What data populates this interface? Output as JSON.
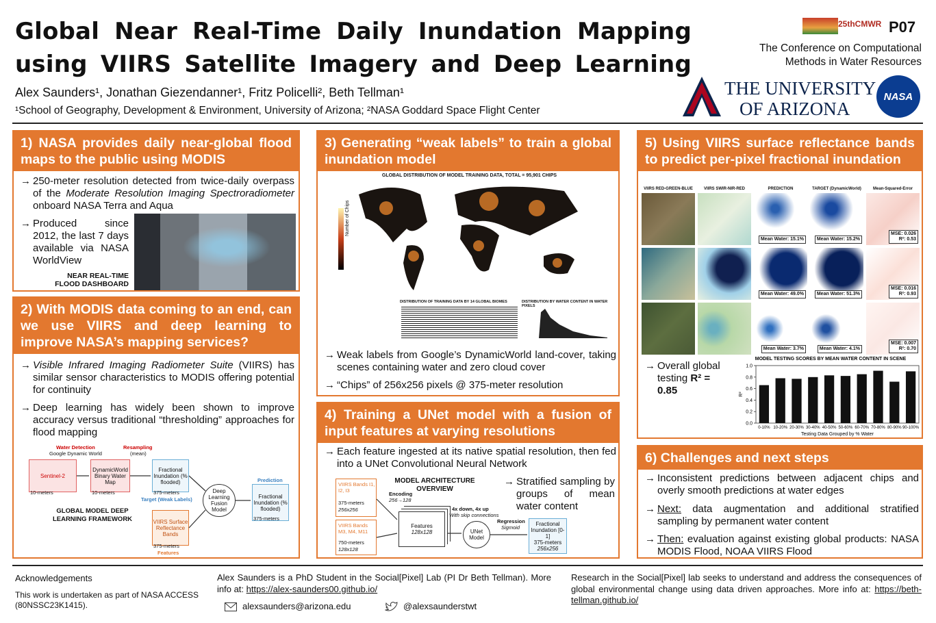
{
  "header": {
    "title_line1": "Global Near Real-Time Daily Inundation Mapping",
    "title_line2": "using VIIRS Satellite Imagery and Deep Learning",
    "authors": "Alex Saunders¹, Jonathan Giezendanner¹, Fritz Policelli², Beth Tellman¹",
    "affiliations": "¹School of Geography, Development & Environment, University of Arizona; ²NASA Goddard Space Flight Center",
    "conference_logo": "25thCMWR",
    "poster_id": "P07",
    "conference": "The Conference on Computational Methods in Water Resources",
    "university_line1": "THE UNIVERSITY",
    "university_line2": "OF ARIZONA",
    "nasa": "NASA"
  },
  "sections": [
    {
      "heading": "1) NASA provides daily near-global flood maps to the public using MODIS",
      "bullets": [
        [
          "250-meter resolution detected from twice-daily overpass of the ",
          "Moderate Resolution Imaging Spectroradiometer",
          " onboard NASA Terra and Aqua"
        ],
        [
          "Produced since 2012, the last 7 days available via NASA WorldView"
        ]
      ],
      "figure_caption": "NEAR REAL-TIME FLOOD DASHBOARD"
    },
    {
      "heading": "2) With MODIS data coming to an end, can we use VIIRS and deep learning to improve NASA’s mapping services?",
      "bullets": [
        [
          "Visible Infrared Imaging Radiometer Suite",
          " (VIIRS) has similar sensor characteristics to MODIS offering potential for continuity"
        ],
        [
          "Deep learning has widely been shown to improve accuracy versus traditional “thresholding” approaches for flood mapping"
        ]
      ],
      "diagram": {
        "water_detection": "Water Detection",
        "google_dynamic_world": "Google Dynamic World",
        "resampling": "Resampling",
        "resampling_method": "(mean)",
        "sentinel": "Sentinel-2",
        "sentinel_res": "10-meters",
        "dw": "DynamicWorld Binary Water Map",
        "dw_res": "10-meters",
        "target_box": "Fractional Inundation (% flooded)",
        "target_res": "375-meters",
        "target_label": "Target (Weak Labels)",
        "model": "Deep Learning Fusion Model",
        "prediction_label": "Prediction",
        "prediction_box": "Fractional Inundation (% flooded)",
        "prediction_res": "375-meters",
        "viirs": "VIIRS Surface Reflectance Bands",
        "viirs_res": "375-meters",
        "features_label": "Features",
        "caption": "GLOBAL MODEL DEEP LEARNING FRAMEWORK"
      }
    },
    {
      "heading": "3) Generating “weak labels” to train a global inundation model",
      "figure": {
        "map_title": "GLOBAL DISTRIBUTION OF MODEL TRAINING DATA, TOTAL = 95,901 CHIPS",
        "colorbar_label": "Number of Chips",
        "biomes_title": "DISTRIBUTION OF TRAINING DATA BY 14 GLOBAL BIOMES",
        "water_title": "DISTRIBUTION BY WATER CONTENT IN WATER PIXELS"
      },
      "bullets": [
        [
          "Weak labels from Google’s DynamicWorld land-cover, taking scenes containing water and zero cloud cover"
        ],
        [
          "“Chips” of 256x256 pixels @ 375-meter resolution"
        ]
      ]
    },
    {
      "heading": "4) Training a UNet model with a fusion of input features at varying resolutions",
      "bullets": [
        [
          "Each feature ingested at its native spatial resolution, then fed into a UNet Convolutional Neural Network"
        ],
        [
          "Stratified sampling by groups of mean water content"
        ]
      ],
      "diagram": {
        "title": "MODEL ARCHITECTURE OVERVIEW",
        "viirs_i": "VIIRS Bands I1, I2, I3",
        "viirs_i_res": "375-meters",
        "viirs_i_size": "256x256",
        "viirs_m": "VIIRS Bands M3, M4, M11",
        "viirs_m_res": "750-meters",
        "viirs_m_size": "128x128",
        "encoding": "Encoding",
        "encoding_size": "256→128",
        "features": "Features",
        "features_size": "128x128",
        "updown": "4x down, 4x up",
        "skip": "With skip connections",
        "unet": "UNet Model",
        "regression": "Regression",
        "sigmoid": "Sigmoid",
        "output": "Fractional Inundation [0-1]",
        "output_res": "375-meters",
        "output_size": "256x256"
      }
    },
    {
      "heading": "5) Using VIIRS surface reflectance bands to predict per-pixel fractional inundation",
      "columns": [
        "VIIRS RED-GREEN-BLUE",
        "VIIRS SWIR-NIR-RED",
        "PREDICTION",
        "TARGET (DynamicWorld)",
        "Mean-Squared-Error"
      ],
      "rows": [
        {
          "prediction": "Mean Water: 15.1%",
          "target": "Mean Water: 15.2%",
          "mse": "MSE: 0.026",
          "r2": "R²: 0.53"
        },
        {
          "prediction": "Mean Water: 49.0%",
          "target": "Mean Water: 51.3%",
          "mse": "MSE: 0.016",
          "r2": "R²: 0.93"
        },
        {
          "prediction": "Mean Water: 3.7%",
          "target": "Mean Water: 4.1%",
          "mse": "MSE: 0.007",
          "r2": "R²: 0.70"
        }
      ],
      "bullets": [
        [
          "Overall global testing ",
          "R² = 0.85"
        ]
      ]
    },
    {
      "heading": "6) Challenges and next steps",
      "bullets": [
        [
          "Inconsistent predictions between adjacent chips and overly smooth predictions at water edges"
        ],
        [
          "Next:",
          " data augmentation and additional stratified sampling by permanent water content"
        ],
        [
          "Then:",
          " evaluation against existing global products: NASA MODIS Flood, NOAA VIIRS Flood"
        ]
      ]
    }
  ],
  "chart_data": {
    "type": "bar",
    "title": "MODEL TESTING SCORES BY MEAN WATER CONTENT IN SCENE",
    "categories": [
      "0-10%",
      "10-20%",
      "20-30%",
      "30-40%",
      "40-50%",
      "50-60%",
      "60-70%",
      "70-80%",
      "80-90%",
      "90-100%"
    ],
    "values": [
      0.66,
      0.78,
      0.77,
      0.8,
      0.83,
      0.82,
      0.85,
      0.91,
      0.72,
      0.9
    ],
    "color": "#111111",
    "x_label": "Testing Data Grouped by % Water",
    "y_label": "R²",
    "ylim": [
      0,
      1
    ],
    "yticks": [
      {
        "value": 0,
        "label": "0.0"
      },
      0.2,
      0.4,
      0.6,
      0.8,
      {
        "value": 1,
        "label": "1.0"
      }
    ]
  },
  "footer": {
    "ack_title": "Acknowledgements",
    "ack_text": "This work is undertaken as part of NASA ACCESS (80NSSC23K1415).",
    "bio": "Alex Saunders is a PhD Student in the Social[Pixel] Lab (PI Dr Beth Tellman). More info at: ",
    "bio_link": "https://alex-saunders00.github.io/",
    "email": "alexsaunders@arizona.edu",
    "twitter": "@alexsaunderstwt",
    "lab": "Research in the Social[Pixel] lab seeks to understand and address the consequences of global environmental change using data driven approaches. More info at: ",
    "lab_link": "https://beth-tellman.github.io/"
  }
}
